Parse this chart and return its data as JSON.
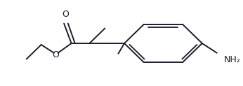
{
  "bg_color": "#ffffff",
  "line_color": "#1c1c2e",
  "line_width": 1.4,
  "fig_width": 3.46,
  "fig_height": 1.23,
  "dpi": 100,
  "NH2_label": "NH₂",
  "O_ester_label": "O",
  "O_carbonyl_label": "O"
}
